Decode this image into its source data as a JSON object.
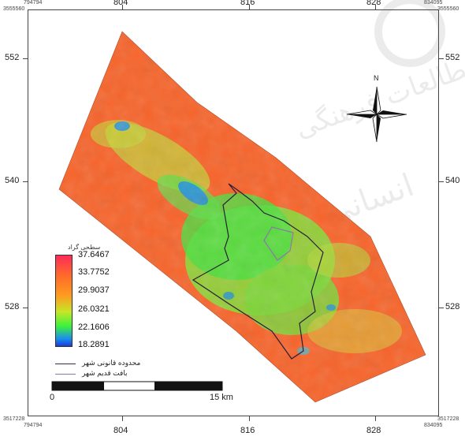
{
  "map": {
    "top_axis": [
      "804",
      "816",
      "828"
    ],
    "bottom_axis": [
      "804",
      "816",
      "828"
    ],
    "left_axis": [
      "552",
      "540",
      "528"
    ],
    "right_axis": [
      "552",
      "540",
      "528"
    ],
    "corners": {
      "top_left_x": "794794",
      "top_left_y": "3555560",
      "top_right_x": "834095",
      "top_right_y": "3555560",
      "bottom_left_x": "794794",
      "bottom_left_y": "3517228",
      "bottom_right_x": "834095",
      "bottom_right_y": "3517228"
    },
    "north_label": "N"
  },
  "legend": {
    "title": "سطحی گراد",
    "values": [
      "37.6467",
      "33.7752",
      "29.9037",
      "26.0321",
      "22.1606",
      "18.2891"
    ],
    "colors": [
      "#ff2a5a",
      "#ff6a2a",
      "#ff9a20",
      "#c7e627",
      "#3cf23c",
      "#1a3cd8"
    ],
    "line_items": [
      {
        "label": "محدوده قانونی شهر",
        "color": "#3a2a4a"
      },
      {
        "label": "بافت قدیم شهر",
        "color": "#8a7aa8"
      }
    ]
  },
  "scalebar": {
    "start": "0",
    "end": "15 km"
  },
  "watermark": "مطالعات فرهنگی انسانی"
}
